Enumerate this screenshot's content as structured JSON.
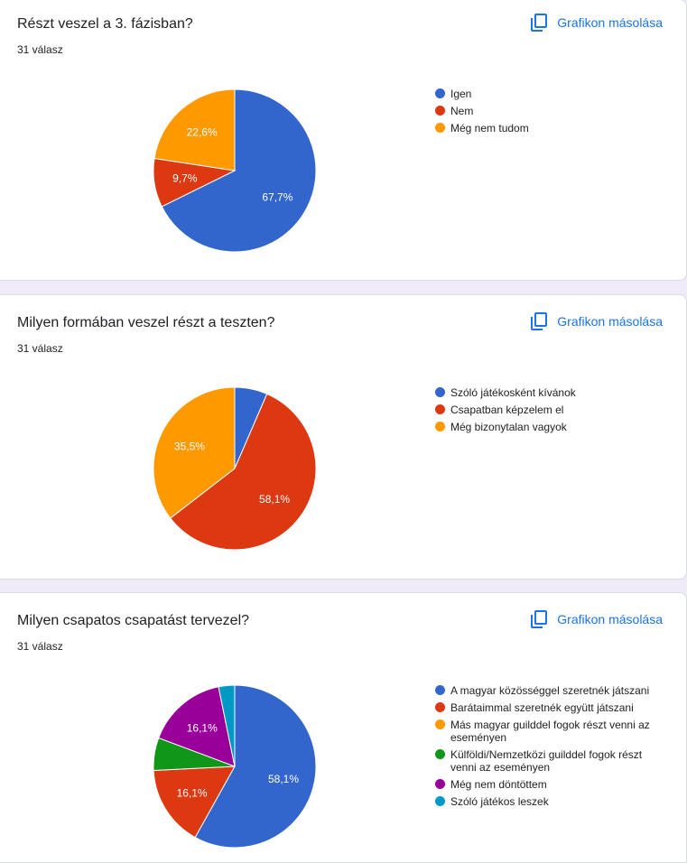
{
  "copy_label": "Grafikon másolása",
  "cards": [
    {
      "title": "Részt veszel a 3. fázisban?",
      "subtitle": "31 válasz",
      "chart_data": {
        "type": "pie",
        "categories": [
          "Igen",
          "Nem",
          "Még nem tudom"
        ],
        "values": [
          67.7,
          9.7,
          22.6
        ],
        "value_labels": [
          "67,7%",
          "9,7%",
          "22,6%"
        ],
        "colors": [
          "#3366cc",
          "#dc3912",
          "#ff9900"
        ],
        "legend": "right"
      }
    },
    {
      "title": "Milyen formában veszel részt a teszten?",
      "subtitle": "31 válasz",
      "chart_data": {
        "type": "pie",
        "categories": [
          "Szóló játékosként kívánok",
          "Csapatban képzelem el",
          "Még bizonytalan vagyok"
        ],
        "values": [
          6.5,
          58.1,
          35.5
        ],
        "value_labels": [
          "",
          "58,1%",
          "35,5%"
        ],
        "colors": [
          "#3366cc",
          "#dc3912",
          "#ff9900"
        ],
        "legend": "right"
      }
    },
    {
      "title": "Milyen csapatos csapatást tervezel?",
      "subtitle": "31 válasz",
      "chart_data": {
        "type": "pie",
        "categories": [
          "A magyar közösséggel szeretnék játszani",
          "Barátaimmal szeretnék együtt játszani",
          "Más magyar guilddel fogok részt venni az eseményen",
          "Külföldi/Nemzetközi guilddel fogok részt venni az eseményen",
          "Még nem döntöttem",
          "Szóló játékos leszek"
        ],
        "values": [
          58.1,
          16.1,
          0,
          6.5,
          16.1,
          3.2
        ],
        "value_labels": [
          "58,1%",
          "16,1%",
          "",
          "",
          "16,1%",
          ""
        ],
        "colors": [
          "#3366cc",
          "#dc3912",
          "#ff9900",
          "#109618",
          "#990099",
          "#0099c6"
        ],
        "legend": "right"
      }
    }
  ]
}
